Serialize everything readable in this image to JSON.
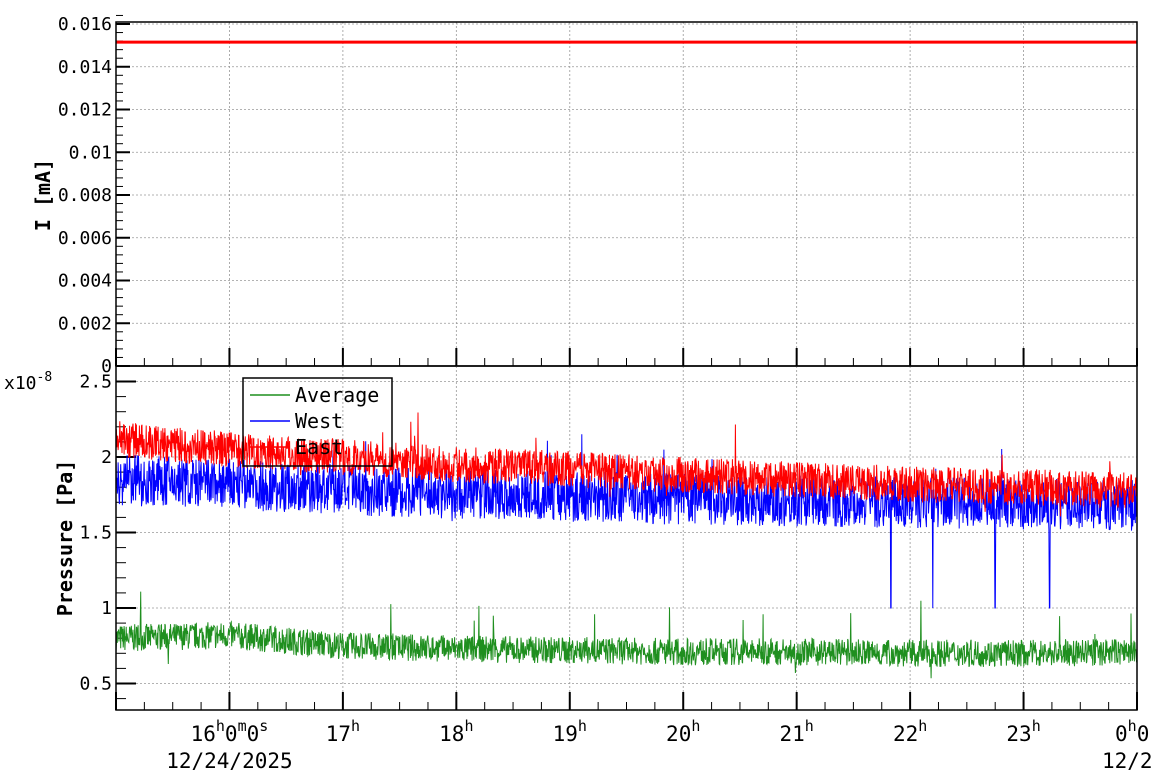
{
  "chart_data": [
    {
      "type": "line",
      "ylabel": "I [mA]",
      "ylim": [
        0,
        0.016
      ],
      "yticks": [
        "0",
        "0.002",
        "0.004",
        "0.006",
        "0.008",
        "0.01",
        "0.012",
        "0.014",
        "0.016"
      ],
      "grid": true,
      "x_hours": [
        15,
        24
      ],
      "series": [
        {
          "color": "#ff0000",
          "x": [
            15,
            24
          ],
          "values": [
            0.01515,
            0.01515
          ]
        }
      ]
    },
    {
      "type": "line",
      "ylabel": "Pressure [Pa]",
      "yscale_label": "x10",
      "yscale_exp": "-8",
      "ylim": [
        0.33,
        2.61
      ],
      "yticks": [
        "0.5",
        "1",
        "1.5",
        "2",
        "2.5"
      ],
      "grid": true,
      "legend": "top-left",
      "xticks": [
        {
          "h": 16,
          "label": "16h0m0s",
          "date": "12/24/2025"
        },
        {
          "h": 17,
          "label": "17h"
        },
        {
          "h": 18,
          "label": "18h"
        },
        {
          "h": 19,
          "label": "19h"
        },
        {
          "h": 20,
          "label": "20h"
        },
        {
          "h": 21,
          "label": "21h"
        },
        {
          "h": 22,
          "label": "22h"
        },
        {
          "h": 23,
          "label": "23h"
        },
        {
          "h": 24,
          "label": "0h0",
          "date": "12/2"
        }
      ],
      "x": [
        15,
        16,
        17,
        18,
        19,
        20,
        21,
        22,
        23,
        24
      ],
      "series": [
        {
          "name": "Average",
          "color": "#1f8f1f",
          "values": [
            0.8,
            0.82,
            0.75,
            0.73,
            0.72,
            0.71,
            0.71,
            0.7,
            0.7,
            0.71
          ]
        },
        {
          "name": "West",
          "color": "#0000ff",
          "values": [
            1.85,
            1.82,
            1.78,
            1.76,
            1.74,
            1.72,
            1.71,
            1.7,
            1.69,
            1.68
          ],
          "dips_hours": [
            21.83,
            22.2,
            22.75,
            23.23
          ],
          "dip_value": 1.0
        },
        {
          "name": "East",
          "color": "#ff0000",
          "values": [
            2.12,
            2.05,
            2.0,
            1.95,
            1.92,
            1.88,
            1.85,
            1.82,
            1.8,
            1.78
          ]
        }
      ]
    }
  ]
}
